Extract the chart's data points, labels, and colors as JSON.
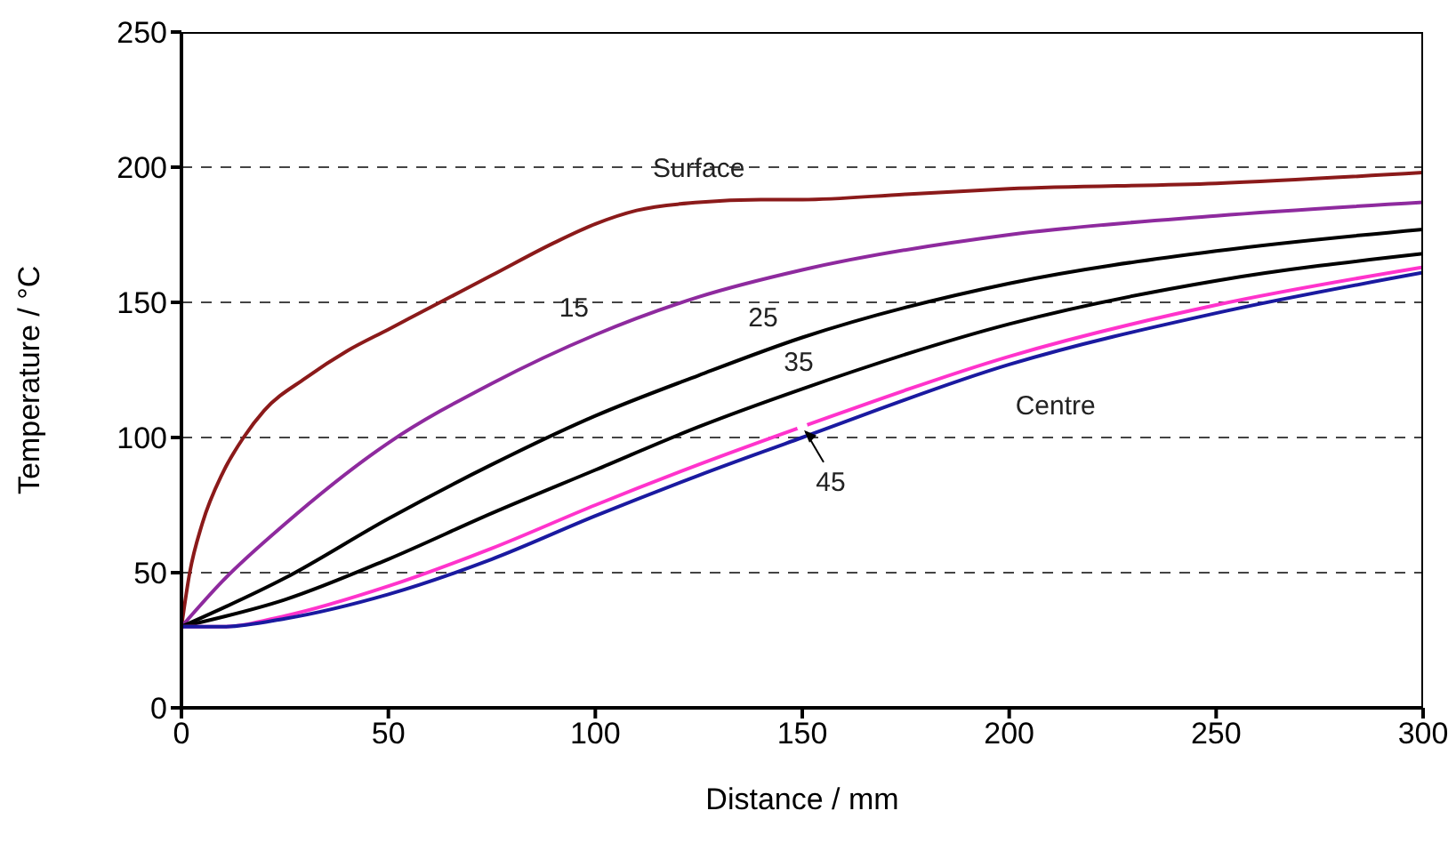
{
  "chart_data": {
    "type": "line",
    "xlabel": "Distance / mm",
    "ylabel": "Temperature / °C",
    "xlim": [
      0,
      300
    ],
    "xticks": [
      0,
      50,
      100,
      150,
      200,
      250,
      300
    ],
    "ylim": [
      0,
      250
    ],
    "yticks": [
      0,
      50,
      100,
      150,
      200,
      250
    ],
    "grid": "y",
    "annotations": [
      {
        "text": "45",
        "x": 150,
        "y": 104
      }
    ],
    "legend": false,
    "marker": "none",
    "series": [
      {
        "name": "Surface",
        "color": "#8b1a1a",
        "x": [
          0,
          2,
          5,
          10,
          15,
          20,
          30,
          40,
          50,
          60,
          75,
          90,
          100,
          110,
          125,
          140,
          150,
          175,
          200,
          250,
          300
        ],
        "values": [
          30,
          50,
          68,
          87,
          100,
          110,
          122,
          132,
          140,
          148,
          160,
          172,
          179,
          184,
          187,
          188,
          188,
          190,
          192,
          194,
          198
        ]
      },
      {
        "name": "15",
        "color": "#8e2a9e",
        "x": [
          0,
          10,
          25,
          50,
          75,
          100,
          125,
          150,
          200,
          250,
          300
        ],
        "values": [
          30,
          47,
          68,
          98,
          120,
          138,
          152,
          162,
          175,
          182,
          187
        ]
      },
      {
        "name": "25",
        "color": "#000000",
        "x": [
          0,
          25,
          50,
          75,
          100,
          125,
          150,
          200,
          250,
          300
        ],
        "values": [
          30,
          48,
          70,
          90,
          108,
          123,
          137,
          157,
          169,
          177
        ]
      },
      {
        "name": "35",
        "color": "#000000",
        "x": [
          0,
          25,
          50,
          75,
          100,
          125,
          150,
          200,
          250,
          300
        ],
        "values": [
          30,
          40,
          55,
          72,
          88,
          104,
          118,
          142,
          158,
          168
        ]
      },
      {
        "color": "#ff33cc",
        "x": [
          0,
          10,
          25,
          50,
          75,
          100,
          125,
          150,
          200,
          250,
          300
        ],
        "values": [
          30,
          30,
          34,
          45,
          59,
          75,
          90,
          104,
          130,
          149,
          163
        ]
      },
      {
        "name": "Centre",
        "color": "#1a1aa0",
        "x": [
          0,
          10,
          25,
          50,
          75,
          100,
          125,
          150,
          200,
          250,
          300
        ],
        "values": [
          30,
          30,
          33,
          42,
          55,
          71,
          86,
          100,
          127,
          146,
          161
        ]
      }
    ]
  }
}
